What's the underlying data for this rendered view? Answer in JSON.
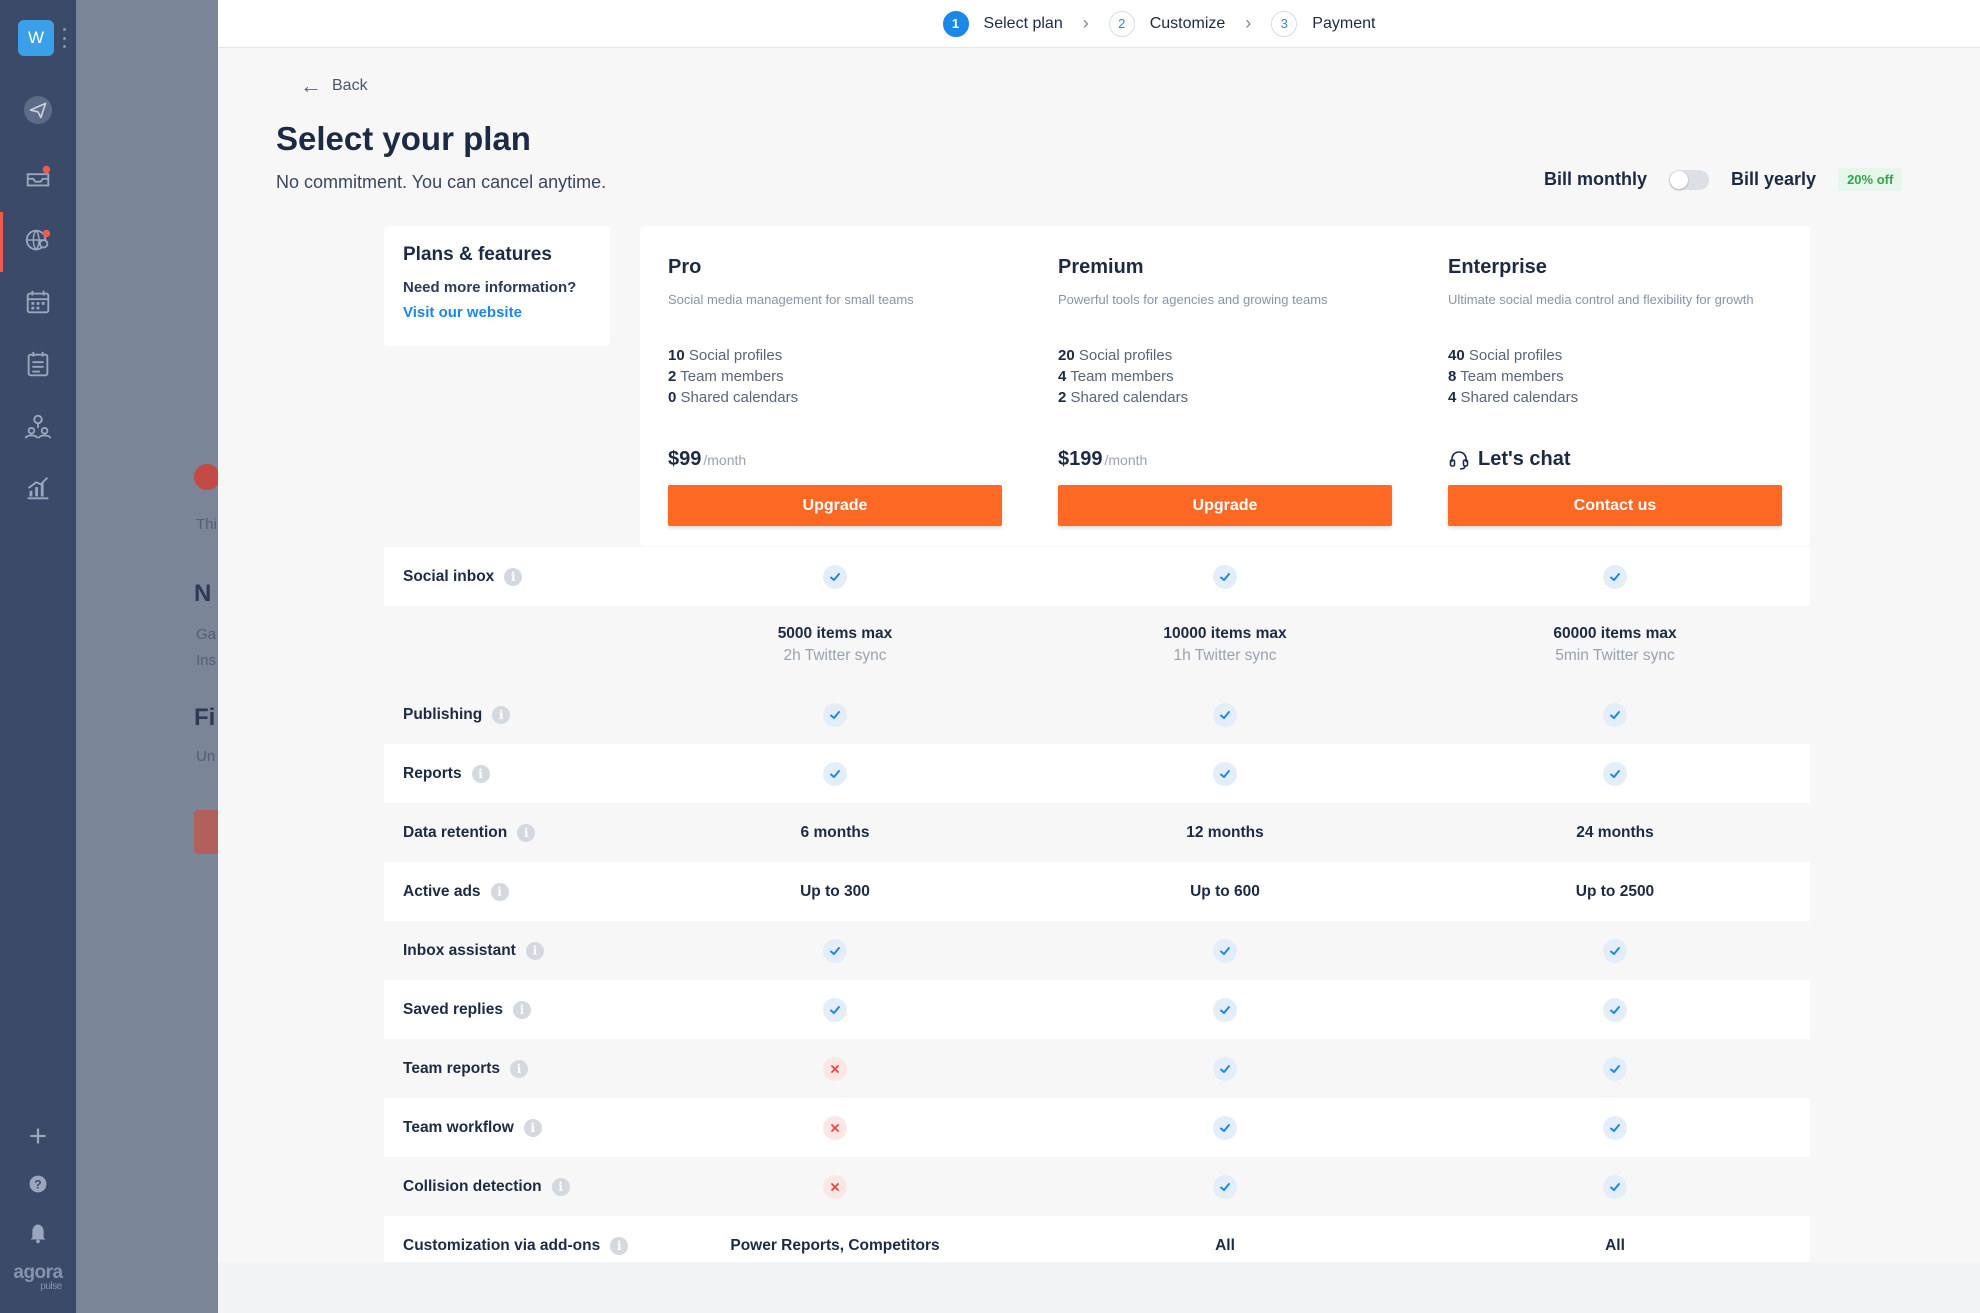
{
  "sidebar": {
    "workspace_initial": "W",
    "brand_name": "agora",
    "brand_sub": "pulse"
  },
  "background_page": {
    "text_1": "Thi",
    "heading_1": "N",
    "text_2": "Ga",
    "text_3": "Ins",
    "heading_2": "Fi",
    "text_4": "Un"
  },
  "steps": [
    {
      "num": "1",
      "label": "Select plan"
    },
    {
      "num": "2",
      "label": "Customize"
    },
    {
      "num": "3",
      "label": "Payment"
    }
  ],
  "back_label": "Back",
  "page_title": "Select your plan",
  "page_subtitle": "No commitment. You can cancel anytime.",
  "billing": {
    "monthly_label": "Bill monthly",
    "yearly_label": "Bill yearly",
    "discount": "20% off",
    "yearly_selected": false
  },
  "plans_features": {
    "title": "Plans & features",
    "question": "Need more information?",
    "link": "Visit our website"
  },
  "plans": [
    {
      "name": "Pro",
      "desc": "Social media management for small teams",
      "features": [
        {
          "num": "10",
          "label": "Social profiles"
        },
        {
          "num": "2",
          "label": "Team members"
        },
        {
          "num": "0",
          "label": "Shared calendars"
        }
      ],
      "price": "$99",
      "period": "/month",
      "button": "Upgrade"
    },
    {
      "name": "Premium",
      "desc": "Powerful tools for agencies and growing teams",
      "features": [
        {
          "num": "20",
          "label": "Social profiles"
        },
        {
          "num": "4",
          "label": "Team members"
        },
        {
          "num": "2",
          "label": "Shared calendars"
        }
      ],
      "price": "$199",
      "period": "/month",
      "button": "Upgrade"
    },
    {
      "name": "Enterprise",
      "desc": "Ultimate social media control and flexibility for growth",
      "features": [
        {
          "num": "40",
          "label": "Social profiles"
        },
        {
          "num": "8",
          "label": "Team members"
        },
        {
          "num": "4",
          "label": "Shared calendars"
        }
      ],
      "price": "Let's chat",
      "period": "",
      "button": "Contact us"
    }
  ],
  "inbox_details": [
    {
      "items": "5000 items max",
      "sync": "2h Twitter sync"
    },
    {
      "items": "10000 items max",
      "sync": "1h Twitter sync"
    },
    {
      "items": "60000 items max",
      "sync": "5min Twitter sync"
    }
  ],
  "features": [
    {
      "label": "Social inbox",
      "values": [
        "check",
        "check",
        "check"
      ]
    },
    {
      "label": "Publishing",
      "values": [
        "check",
        "check",
        "check"
      ]
    },
    {
      "label": "Reports",
      "values": [
        "check",
        "check",
        "check"
      ]
    },
    {
      "label": "Data retention",
      "values": [
        "6 months",
        "12 months",
        "24 months"
      ]
    },
    {
      "label": "Active ads",
      "values": [
        "Up to 300",
        "Up to 600",
        "Up to 2500"
      ]
    },
    {
      "label": "Inbox assistant",
      "values": [
        "check",
        "check",
        "check"
      ]
    },
    {
      "label": "Saved replies",
      "values": [
        "check",
        "check",
        "check"
      ]
    },
    {
      "label": "Team reports",
      "values": [
        "cross",
        "check",
        "check"
      ]
    },
    {
      "label": "Team workflow",
      "values": [
        "cross",
        "check",
        "check"
      ]
    },
    {
      "label": "Collision detection",
      "values": [
        "cross",
        "check",
        "check"
      ]
    },
    {
      "label": "Customization via add-ons",
      "values": [
        "Power Reports, Competitors",
        "All",
        "All"
      ]
    }
  ],
  "colors": {
    "accent_orange": "#fe6825",
    "accent_blue": "#1b87e6",
    "sidebar": "#3a4a68",
    "discount_green": "#31a64e",
    "cross_red": "#e5473d"
  }
}
